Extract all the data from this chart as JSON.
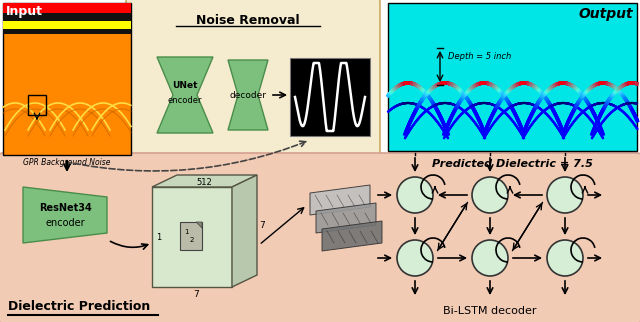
{
  "bg_noise_box_color": "#F5ECD0",
  "bg_noise_box_edge": "#CCAA66",
  "bg_bottom_color": "#F2CBB5",
  "bg_bottom_edge": "#D4A090",
  "input_label": "Input",
  "input_sublabel": "GPR Background Noise",
  "noise_removal_label": "Noise Removal",
  "unet_label": "UNet\nencoder",
  "decoder_label": "decoder",
  "output_label": "Output",
  "depth_label": "Depth = 5 inch",
  "predicted_label": "Predicted Dielectric = 7.5",
  "resnet_label": "ResNet34\nencoder",
  "bilstm_label": "Bi-LSTM decoder",
  "dielectric_label": "Dielectric Prediction",
  "green_fill": "#7DC07D",
  "green_edge": "#4A8C4A",
  "node_fill": "#D6EED6",
  "node_edge": "#333333",
  "cube_front": "#D8E8CC",
  "cube_top": "#C8D8BC",
  "cube_right": "#B8C8AC",
  "cube_edge": "#555544"
}
